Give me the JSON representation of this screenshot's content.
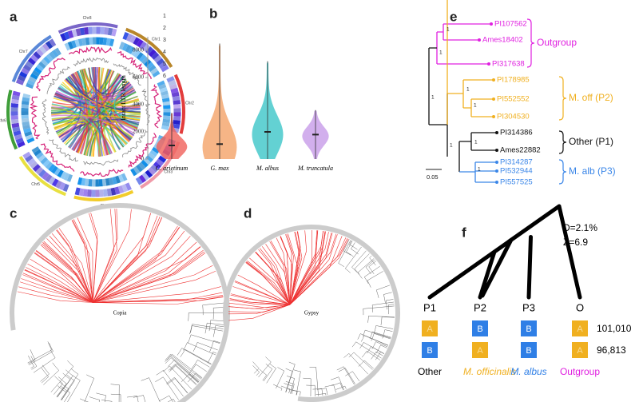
{
  "panel_labels": [
    "a",
    "b",
    "c",
    "d",
    "e",
    "f"
  ],
  "circos": {
    "chromosomes": [
      "Chr1",
      "Chr2",
      "Chr3",
      "Chr4",
      "Chr5",
      "Chr6",
      "Chr7",
      "Chr8"
    ],
    "track_numbers": [
      "1",
      "2",
      "3",
      "4",
      "5",
      "6"
    ]
  },
  "chart_data": {
    "type": "violin",
    "ylabel": "Intact LTR length",
    "categories": [
      "C. arietinum",
      "G. max",
      "M. albus",
      "M. truncatula"
    ],
    "median": [
      1000,
      1100,
      2000,
      1800
    ],
    "max": [
      3400,
      8500,
      7200,
      3600
    ],
    "colors": [
      "#f0605a",
      "#f4a268",
      "#3cc6c8",
      "#c79be8"
    ],
    "ylim": [
      0,
      9000
    ],
    "yticks": [
      0,
      2000,
      4000,
      6000,
      8000
    ]
  },
  "trees": {
    "copia": "Copia",
    "gypsy": "Gypsy"
  },
  "phylogeny": {
    "taxa": [
      "PI107562",
      "Ames18402",
      "PI317638",
      "PI178985",
      "PI552552",
      "PI304530",
      "PI314386",
      "Ames22882",
      "PI314287",
      "PI532944",
      "PI557525"
    ],
    "bootstrap": [
      "1",
      "1",
      "1",
      "1",
      "1",
      "1",
      "1",
      "1"
    ],
    "groups": [
      "Outgroup",
      "M. off (P2)",
      "Other (P1)",
      "M. alb (P3)"
    ],
    "scale": "0.05"
  },
  "abba": {
    "d_stat": "D=2.1%",
    "z_score": "Z=6.9",
    "populations": [
      "P1",
      "P2",
      "P3",
      "O"
    ],
    "patterns": [
      {
        "alleles": [
          "A",
          "B",
          "B",
          "A"
        ],
        "count": "101,010"
      },
      {
        "alleles": [
          "B",
          "A",
          "B",
          "A"
        ],
        "count": "96,813"
      }
    ],
    "names": [
      "Other",
      "M. officinalis",
      "M. albus",
      "Outgroup"
    ]
  }
}
